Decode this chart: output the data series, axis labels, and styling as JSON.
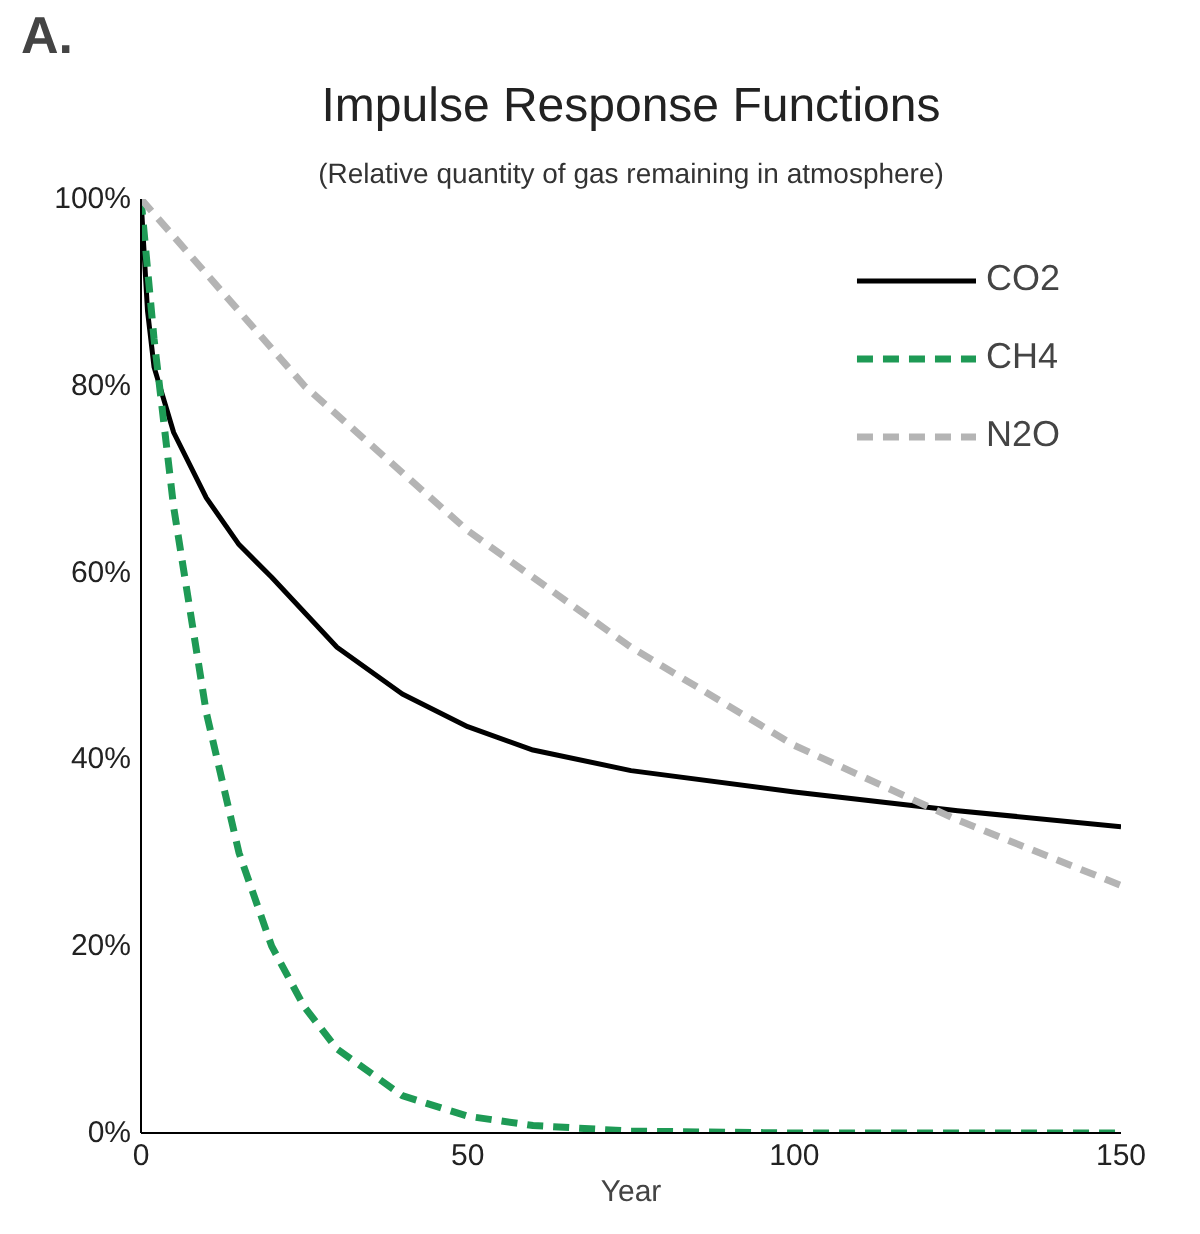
{
  "chart_data": {
    "type": "line",
    "title": "Impulse Response Functions",
    "subtitle": "(Relative quantity of gas remaining in atmosphere)",
    "xlabel": "Year",
    "annotations": [
      "A."
    ],
    "xlim": [
      0,
      150
    ],
    "xticks": [
      0,
      50,
      100,
      150
    ],
    "ylim": [
      0,
      100
    ],
    "yticks": [
      {
        "value": 0,
        "label": "0%"
      },
      {
        "value": 20,
        "label": "20%"
      },
      {
        "value": 40,
        "label": "40%"
      },
      {
        "value": 60,
        "label": "60%"
      },
      {
        "value": 80,
        "label": "80%"
      },
      {
        "value": 100,
        "label": "100%"
      }
    ],
    "grid": false,
    "legend": "top right",
    "marker": "none",
    "series": [
      {
        "name": "CO2",
        "color": "#000000",
        "line_style": "solid",
        "x": [
          0,
          1,
          2,
          5,
          10,
          15,
          20,
          30,
          40,
          50,
          60,
          75,
          100,
          125,
          150
        ],
        "values": [
          100,
          88,
          82,
          75,
          68,
          63,
          59.5,
          52,
          47,
          43.5,
          41,
          38.8,
          36.5,
          34.5,
          32.8
        ]
      },
      {
        "name": "CH4",
        "color": "#1e9a55",
        "line_style": "dashed",
        "x": [
          0,
          2,
          5,
          10,
          15,
          20,
          25,
          30,
          40,
          50,
          60,
          75,
          100,
          150
        ],
        "values": [
          100,
          85,
          67,
          45,
          30,
          20,
          13.5,
          9,
          4,
          1.8,
          0.8,
          0.2,
          0,
          0
        ]
      },
      {
        "name": "N2O",
        "color": "#b4b4b4",
        "line_style": "dashed",
        "x": [
          0,
          25,
          50,
          75,
          100,
          125,
          150
        ],
        "values": [
          100,
          80,
          64.5,
          52,
          41.5,
          33.5,
          26.5
        ]
      }
    ]
  }
}
